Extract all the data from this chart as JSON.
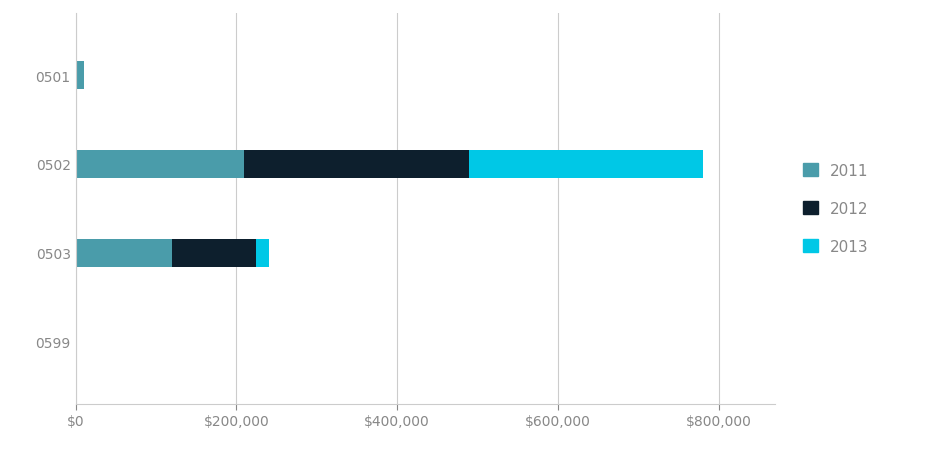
{
  "categories": [
    "0501",
    "0502",
    "0503",
    "0599"
  ],
  "series": {
    "2011": [
      10000,
      210000,
      120000,
      0
    ],
    "2012": [
      0,
      280000,
      105000,
      0
    ],
    "2013": [
      0,
      290000,
      15000,
      0
    ]
  },
  "colors": {
    "2011": "#4a9caa",
    "2012": "#0d1f2d",
    "2013": "#00c8e6"
  },
  "legend_labels": [
    "2011",
    "2012",
    "2013"
  ],
  "xlim": [
    0,
    870000
  ],
  "xticks": [
    0,
    200000,
    400000,
    600000,
    800000
  ],
  "background_color": "#ffffff",
  "grid_color": "#cccccc",
  "bar_height": 0.32,
  "figsize": [
    9.45,
    4.6
  ],
  "dpi": 100,
  "tick_label_color": "#888888",
  "y_label_fontsize": 10,
  "x_label_fontsize": 10
}
